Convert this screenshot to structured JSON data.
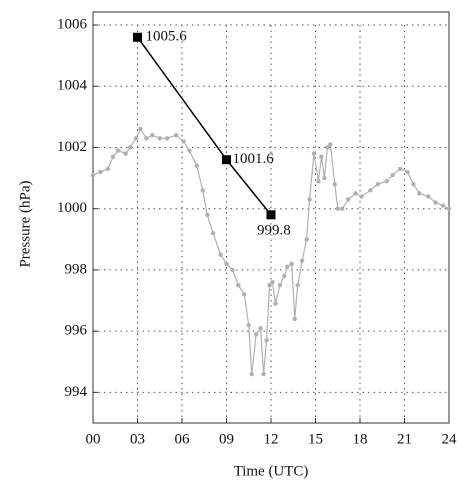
{
  "chart_data": {
    "type": "line",
    "xlabel": "Time (UTC)",
    "ylabel": "Pressure (hPa)",
    "xlim": [
      0,
      24
    ],
    "xticks": [
      {
        "value": 0,
        "label": "00"
      },
      {
        "value": 3,
        "label": "03"
      },
      {
        "value": 6,
        "label": "06"
      },
      {
        "value": 9,
        "label": "09"
      },
      12,
      15,
      18,
      21,
      24
    ],
    "ylim": [
      993,
      1006
    ],
    "yticks": [
      994,
      996,
      998,
      1000,
      1002,
      1004,
      1006
    ],
    "grid": true,
    "series": [
      {
        "color": "#b0b0b0",
        "x": [
          0,
          0.5,
          1.0,
          1.35,
          1.7,
          2.2,
          2.5,
          2.9,
          3.2,
          3.6,
          4.0,
          4.5,
          5.0,
          5.6,
          6.1,
          6.5,
          7.0,
          7.4,
          7.7,
          8.1,
          8.6,
          9.0,
          9.4,
          9.8,
          10.2,
          10.5,
          10.7,
          11.0,
          11.3,
          11.5,
          11.7,
          11.9,
          12.1,
          12.3,
          12.6,
          12.9,
          13.1,
          13.4,
          13.6,
          13.8,
          14.1,
          14.4,
          14.6,
          14.9,
          15.2,
          15.4,
          15.6,
          15.8,
          16.0,
          16.3,
          16.5,
          16.8,
          17.2,
          17.7,
          18.1,
          18.7,
          19.2,
          19.8,
          20.2,
          20.7,
          21.2,
          21.6,
          22.0,
          22.6,
          23.1,
          23.6,
          24.0
        ],
        "values": [
          1001.1,
          1001.2,
          1001.3,
          1001.7,
          1001.9,
          1001.8,
          1002.0,
          1002.3,
          1002.6,
          1002.3,
          1002.4,
          1002.3,
          1002.3,
          1002.4,
          1002.2,
          1001.9,
          1001.4,
          1000.6,
          999.8,
          999.2,
          998.5,
          998.2,
          998.0,
          997.5,
          997.2,
          996.2,
          994.6,
          995.9,
          996.1,
          994.6,
          995.7,
          997.5,
          997.6,
          996.9,
          997.5,
          997.8,
          998.1,
          998.2,
          996.4,
          997.5,
          998.3,
          999.0,
          1000.3,
          1001.8,
          1000.9,
          1001.7,
          1001.0,
          1002.0,
          1002.1,
          1000.8,
          1000.0,
          1000.0,
          1000.3,
          1000.5,
          1000.4,
          1000.6,
          1000.8,
          1000.9,
          1001.1,
          1001.3,
          1001.2,
          1000.8,
          1000.5,
          1000.4,
          1000.2,
          1000.1,
          1000.0
        ]
      },
      {
        "color": "#000000",
        "x": [
          3,
          9,
          12
        ],
        "values": [
          1005.6,
          1001.6,
          999.8
        ]
      }
    ]
  }
}
